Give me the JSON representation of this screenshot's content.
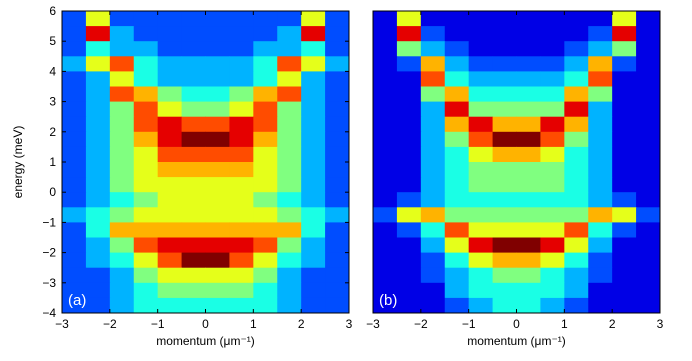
{
  "chart_data": [
    {
      "type": "heatmap",
      "annotation": "(a)",
      "colormap": "jet",
      "zlim": [
        0,
        10
      ],
      "xlabel": "momentum (μm⁻¹)",
      "ylabel": "energy (meV)",
      "xlim": [
        -3,
        3
      ],
      "ylim": [
        -4,
        6
      ],
      "xticks": [
        {
          "value": -3,
          "label": "−3"
        },
        {
          "value": -2,
          "label": "−2"
        },
        {
          "value": -1,
          "label": "−1"
        },
        0,
        1,
        2,
        3
      ],
      "yticks": [
        {
          "value": -4,
          "label": "−4"
        },
        {
          "value": -3,
          "label": "−3"
        },
        {
          "value": -2,
          "label": "−2"
        },
        {
          "value": -1,
          "label": "−1"
        },
        0,
        1,
        2,
        3,
        4,
        5,
        6
      ],
      "x": [
        -2.75,
        -2.25,
        -1.75,
        -1.25,
        -0.75,
        -0.25,
        0.25,
        0.75,
        1.25,
        1.75,
        2.25,
        2.75
      ],
      "y": [
        5.75,
        5.25,
        4.75,
        4.25,
        3.75,
        3.25,
        2.75,
        2.25,
        1.75,
        1.25,
        0.75,
        0.25,
        -0.25,
        -0.75,
        -1.25,
        -1.75,
        -2.25,
        -2.75,
        -3.25,
        -3.75
      ],
      "z": [
        [
          2,
          6,
          2,
          2,
          2,
          2,
          2,
          2,
          2,
          2,
          6,
          2
        ],
        [
          2,
          9,
          3,
          2,
          2,
          2,
          2,
          2,
          2,
          3,
          9,
          2
        ],
        [
          2,
          4,
          3,
          3,
          2,
          2,
          2,
          2,
          3,
          3,
          4,
          2
        ],
        [
          3,
          6,
          8,
          4,
          3,
          3,
          3,
          3,
          4,
          8,
          6,
          3
        ],
        [
          2,
          3,
          6,
          4,
          3,
          3,
          3,
          3,
          4,
          6,
          3,
          2
        ],
        [
          2,
          3,
          8,
          7,
          5,
          4,
          4,
          5,
          7,
          8,
          3,
          2
        ],
        [
          2,
          3,
          5,
          8,
          6,
          5,
          5,
          6,
          8,
          5,
          3,
          2
        ],
        [
          2,
          3,
          5,
          8,
          9,
          8,
          8,
          9,
          8,
          5,
          3,
          2
        ],
        [
          2,
          3,
          5,
          7,
          9,
          10,
          10,
          9,
          7,
          5,
          3,
          2
        ],
        [
          2,
          3,
          5,
          6,
          8,
          8,
          8,
          8,
          6,
          5,
          3,
          2
        ],
        [
          2,
          3,
          5,
          6,
          7,
          7,
          7,
          7,
          6,
          5,
          3,
          2
        ],
        [
          2,
          3,
          5,
          6,
          6,
          6,
          6,
          6,
          6,
          5,
          3,
          2
        ],
        [
          2,
          3,
          4,
          5,
          6,
          6,
          6,
          6,
          5,
          4,
          3,
          2
        ],
        [
          3,
          4,
          5,
          6,
          6,
          6,
          6,
          6,
          6,
          5,
          4,
          3
        ],
        [
          2,
          4,
          7,
          7,
          7,
          7,
          7,
          7,
          7,
          7,
          4,
          2
        ],
        [
          2,
          3,
          5,
          8,
          9,
          9,
          9,
          9,
          8,
          5,
          3,
          2
        ],
        [
          2,
          3,
          4,
          6,
          8,
          10,
          10,
          8,
          6,
          4,
          3,
          2
        ],
        [
          2,
          2,
          3,
          5,
          6,
          6,
          6,
          6,
          5,
          3,
          2,
          2
        ],
        [
          2,
          2,
          3,
          4,
          5,
          5,
          5,
          5,
          4,
          3,
          2,
          2
        ],
        [
          2,
          2,
          3,
          4,
          4,
          4,
          4,
          4,
          4,
          3,
          2,
          2
        ]
      ]
    },
    {
      "type": "heatmap",
      "annotation": "(b)",
      "colormap": "jet",
      "zlim": [
        0,
        10
      ],
      "xlabel": "momentum (μm⁻¹)",
      "xlim": [
        -3,
        3
      ],
      "ylim": [
        -4,
        6
      ],
      "xticks": [
        {
          "value": -3,
          "label": "−3"
        },
        {
          "value": -2,
          "label": "−2"
        },
        {
          "value": -1,
          "label": "−1"
        },
        0,
        1,
        2,
        3
      ],
      "x": [
        -2.75,
        -2.25,
        -1.75,
        -1.25,
        -0.75,
        -0.25,
        0.25,
        0.75,
        1.25,
        1.75,
        2.25,
        2.75
      ],
      "y": [
        5.75,
        5.25,
        4.75,
        4.25,
        3.75,
        3.25,
        2.75,
        2.25,
        1.75,
        1.25,
        0.75,
        0.25,
        -0.25,
        -0.75,
        -1.25,
        -1.75,
        -2.25,
        -2.75,
        -3.25,
        -3.75
      ],
      "z": [
        [
          1,
          6,
          1,
          1,
          1,
          1,
          1,
          1,
          1,
          1,
          6,
          1
        ],
        [
          1,
          9,
          2,
          1,
          1,
          1,
          1,
          1,
          1,
          2,
          9,
          1
        ],
        [
          1,
          5,
          3,
          2,
          1,
          1,
          1,
          1,
          2,
          3,
          5,
          1
        ],
        [
          1,
          2,
          7,
          3,
          2,
          2,
          2,
          2,
          3,
          7,
          2,
          1
        ],
        [
          1,
          1,
          8,
          4,
          3,
          3,
          3,
          3,
          4,
          8,
          1,
          1
        ],
        [
          1,
          1,
          5,
          7,
          4,
          4,
          4,
          4,
          7,
          5,
          1,
          1
        ],
        [
          1,
          1,
          3,
          9,
          5,
          5,
          5,
          5,
          9,
          3,
          1,
          1
        ],
        [
          1,
          1,
          3,
          7,
          9,
          7,
          7,
          9,
          7,
          3,
          1,
          1
        ],
        [
          1,
          1,
          3,
          5,
          8,
          10,
          10,
          8,
          5,
          3,
          1,
          1
        ],
        [
          1,
          1,
          3,
          4,
          6,
          7,
          7,
          6,
          4,
          3,
          1,
          1
        ],
        [
          1,
          1,
          3,
          4,
          5,
          5,
          5,
          5,
          4,
          3,
          1,
          1
        ],
        [
          1,
          1,
          3,
          4,
          5,
          5,
          5,
          5,
          4,
          3,
          1,
          1
        ],
        [
          1,
          2,
          3,
          4,
          4,
          4,
          4,
          4,
          4,
          3,
          2,
          1
        ],
        [
          2,
          6,
          7,
          5,
          5,
          5,
          5,
          5,
          5,
          7,
          6,
          2
        ],
        [
          1,
          2,
          4,
          8,
          6,
          6,
          6,
          6,
          8,
          4,
          2,
          1
        ],
        [
          1,
          1,
          3,
          6,
          9,
          10,
          10,
          9,
          6,
          3,
          1,
          1
        ],
        [
          1,
          1,
          2,
          4,
          6,
          7,
          7,
          6,
          4,
          2,
          1,
          1
        ],
        [
          1,
          1,
          2,
          3,
          4,
          5,
          5,
          4,
          3,
          2,
          1,
          1
        ],
        [
          1,
          1,
          1,
          3,
          4,
          4,
          4,
          4,
          3,
          1,
          1,
          1
        ],
        [
          1,
          1,
          1,
          2,
          3,
          4,
          4,
          3,
          2,
          1,
          1,
          1
        ]
      ]
    }
  ]
}
